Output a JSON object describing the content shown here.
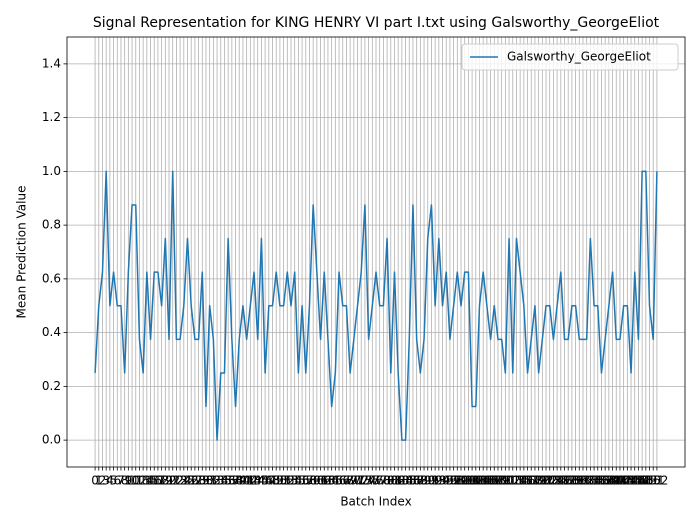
{
  "chart_data": {
    "type": "line",
    "title": "Signal Representation for KING HENRY VI part I.txt using Galsworthy_GeorgeEliot",
    "xlabel": "Batch Index",
    "ylabel": "Mean Prediction Value",
    "x": [
      0,
      1,
      2,
      3,
      4,
      5,
      6,
      7,
      8,
      9,
      10,
      11,
      12,
      13,
      14,
      15,
      16,
      17,
      18,
      19,
      20,
      21,
      22,
      23,
      24,
      25,
      26,
      27,
      28,
      29,
      30,
      31,
      32,
      33,
      34,
      35,
      36,
      37,
      38,
      39,
      40,
      41,
      42,
      43,
      44,
      45,
      46,
      47,
      48,
      49,
      50,
      51,
      52,
      53,
      54,
      55,
      56,
      57,
      58,
      59,
      60,
      61,
      62,
      63,
      64,
      65,
      66,
      67,
      68,
      69,
      70,
      71,
      72,
      73,
      74,
      75,
      76,
      77,
      78,
      79,
      80,
      81,
      82,
      83,
      84,
      85,
      86,
      87,
      88,
      89,
      90,
      91,
      92,
      93,
      94,
      95,
      96,
      97,
      98,
      99,
      100,
      101,
      102,
      103,
      104,
      105,
      106,
      107,
      108,
      109,
      110,
      111,
      112,
      113,
      114,
      115,
      116,
      117,
      118,
      119,
      120,
      121,
      122,
      123,
      124,
      125,
      126,
      127,
      128,
      129,
      130,
      131,
      132,
      133,
      134,
      135,
      136,
      137,
      138,
      139,
      140,
      141,
      142,
      143,
      144,
      145,
      146,
      147,
      148,
      149,
      150,
      151,
      152
    ],
    "series": [
      {
        "name": "Galsworthy_GeorgeEliot",
        "color": "#1f77b4",
        "values": [
          0.25,
          0.5,
          0.625,
          1.0,
          0.5,
          0.625,
          0.5,
          0.5,
          0.25,
          0.625,
          0.875,
          0.875,
          0.375,
          0.25,
          0.625,
          0.375,
          0.625,
          0.625,
          0.5,
          0.75,
          0.375,
          1.0,
          0.375,
          0.375,
          0.5,
          0.75,
          0.5,
          0.375,
          0.375,
          0.625,
          0.125,
          0.5,
          0.375,
          0.0,
          0.25,
          0.25,
          0.75,
          0.375,
          0.125,
          0.375,
          0.5,
          0.375,
          0.5,
          0.625,
          0.375,
          0.75,
          0.25,
          0.5,
          0.5,
          0.625,
          0.5,
          0.5,
          0.625,
          0.5,
          0.625,
          0.25,
          0.5,
          0.25,
          0.5,
          0.875,
          0.625,
          0.375,
          0.625,
          0.375,
          0.125,
          0.25,
          0.625,
          0.5,
          0.5,
          0.25,
          0.375,
          0.5,
          0.625,
          0.875,
          0.375,
          0.5,
          0.625,
          0.5,
          0.5,
          0.75,
          0.25,
          0.625,
          0.25,
          0.0,
          0.0,
          0.375,
          0.875,
          0.375,
          0.25,
          0.375,
          0.75,
          0.875,
          0.5,
          0.75,
          0.5,
          0.625,
          0.375,
          0.5,
          0.625,
          0.5,
          0.625,
          0.625,
          0.125,
          0.125,
          0.5,
          0.625,
          0.5,
          0.375,
          0.5,
          0.375,
          0.375,
          0.25,
          0.75,
          0.25,
          0.75,
          0.625,
          0.5,
          0.25,
          0.375,
          0.5,
          0.25,
          0.375,
          0.5,
          0.5,
          0.375,
          0.5,
          0.625,
          0.375,
          0.375,
          0.5,
          0.5,
          0.375,
          0.375,
          0.375,
          0.75,
          0.5,
          0.5,
          0.25,
          0.375,
          0.5,
          0.625,
          0.375,
          0.375,
          0.5,
          0.5,
          0.25,
          0.625,
          0.375,
          1.0,
          1.0,
          0.5,
          0.375,
          1.0
        ]
      }
    ],
    "xlim": [
      -7.6,
      159.6
    ],
    "xticks": [
      0,
      1,
      2,
      3,
      4,
      5,
      6,
      7,
      8,
      9,
      10,
      11,
      12,
      13,
      14,
      15,
      16,
      17,
      18,
      19,
      20,
      21,
      22,
      23,
      24,
      25,
      26,
      27,
      28,
      29,
      30,
      31,
      32,
      33,
      34,
      35,
      36,
      37,
      38,
      39,
      40,
      41,
      42,
      43,
      44,
      45,
      46,
      47,
      48,
      49,
      50,
      51,
      52,
      53,
      54,
      55,
      56,
      57,
      58,
      59,
      60,
      61,
      62,
      63,
      64,
      65,
      66,
      67,
      68,
      69,
      70,
      71,
      72,
      73,
      74,
      75,
      76,
      77,
      78,
      79,
      80,
      81,
      82,
      83,
      84,
      85,
      86,
      87,
      88,
      89,
      90,
      91,
      92,
      93,
      94,
      95,
      96,
      97,
      98,
      99,
      100,
      101,
      102,
      103,
      104,
      105,
      106,
      107,
      108,
      109,
      110,
      111,
      112,
      113,
      114,
      115,
      116,
      117,
      118,
      119,
      120,
      121,
      122,
      123,
      124,
      125,
      126,
      127,
      128,
      129,
      130,
      131,
      132,
      133,
      134,
      135,
      136,
      137,
      138,
      139,
      140,
      141,
      142,
      143,
      144,
      145,
      146,
      147,
      148,
      149,
      150,
      151,
      152
    ],
    "ylim": [
      -0.1,
      1.5
    ],
    "yticks": [
      {
        "value": 0,
        "label": "0.0"
      },
      {
        "value": 0.2,
        "label": "0.2"
      },
      {
        "value": 0.4,
        "label": "0.4"
      },
      {
        "value": 0.6,
        "label": "0.6"
      },
      {
        "value": 0.8,
        "label": "0.8"
      },
      {
        "value": 1,
        "label": "1.0"
      },
      {
        "value": 1.2,
        "label": "1.2"
      },
      {
        "value": 1.4,
        "label": "1.4"
      }
    ],
    "grid": true,
    "legend": "upper right"
  }
}
